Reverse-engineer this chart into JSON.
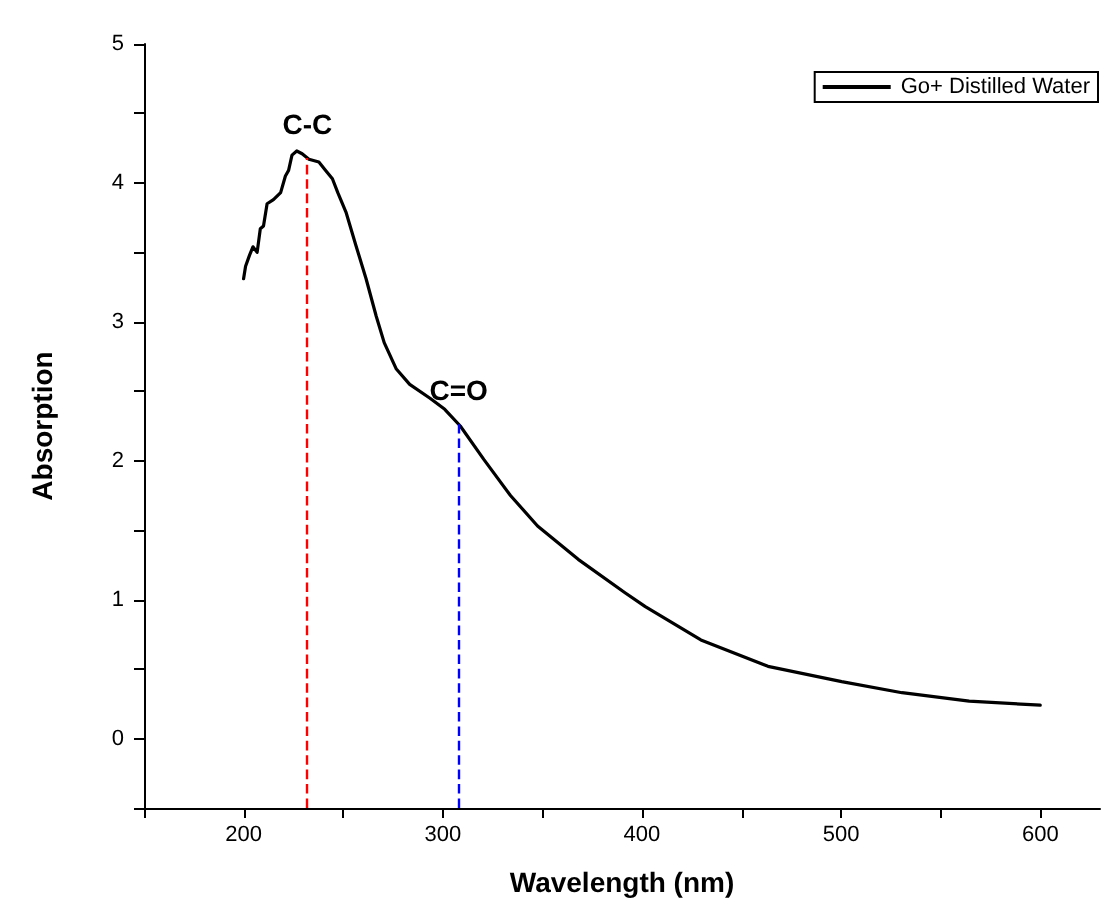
{
  "chart_data": {
    "type": "line",
    "xlabel": "Wavelength (nm)",
    "ylabel": "Absorption",
    "xlim": [
      150,
      630
    ],
    "ylim": [
      -0.5,
      5
    ],
    "xticks": [
      {
        "value": 150,
        "label": null
      },
      200,
      {
        "value": 250,
        "label": null
      },
      300,
      {
        "value": 350,
        "label": null
      },
      400,
      {
        "value": 450,
        "label": null
      },
      500,
      {
        "value": 550,
        "label": null
      },
      600
    ],
    "yticks": [
      {
        "value": -0.5,
        "label": null
      },
      0,
      {
        "value": 0.5,
        "label": null
      },
      1,
      {
        "value": 1.5,
        "label": null
      },
      2,
      {
        "value": 2.5,
        "label": null
      },
      3,
      {
        "value": 3.5,
        "label": null
      },
      4,
      {
        "value": 4.5,
        "label": null
      },
      5
    ],
    "grid": false,
    "legend": "top right",
    "marker": "none",
    "line_style": "solid",
    "series": [
      {
        "name": "Go+ Distilled Water",
        "color": "#000000",
        "x": [
          200,
          201,
          203,
          204.7,
          206.8,
          208.4,
          210,
          211.8,
          215,
          218.6,
          221,
          222.6,
          224.3,
          226.7,
          229.4,
          232.8,
          237.8,
          241.2,
          244.6,
          247.3,
          251.4,
          256.4,
          261.5,
          266.6,
          270.6,
          276.7,
          283.4,
          293.6,
          301,
          308.8,
          320.6,
          334,
          347.6,
          368,
          391.5,
          401.7,
          429.6,
          463.3,
          500.3,
          530.6,
          564.3,
          600
        ],
        "values": [
          3.31,
          3.4,
          3.48,
          3.54,
          3.5,
          3.67,
          3.69,
          3.85,
          3.88,
          3.93,
          4.05,
          4.09,
          4.2,
          4.23,
          4.21,
          4.17,
          4.15,
          4.09,
          4.03,
          3.93,
          3.79,
          3.55,
          3.31,
          3.04,
          2.85,
          2.66,
          2.55,
          2.45,
          2.37,
          2.25,
          2.01,
          1.75,
          1.53,
          1.29,
          1.05,
          0.95,
          0.71,
          0.52,
          0.41,
          0.33,
          0.27,
          0.24
        ]
      }
    ],
    "ref_lines": [
      {
        "axis": "x",
        "value": 232,
        "label": "C-C",
        "color": "#ff0000",
        "line_style": "dashed"
      },
      {
        "axis": "x",
        "value": 308,
        "label": "C=O",
        "color": "#0000ff",
        "line_style": "dashed"
      }
    ]
  }
}
